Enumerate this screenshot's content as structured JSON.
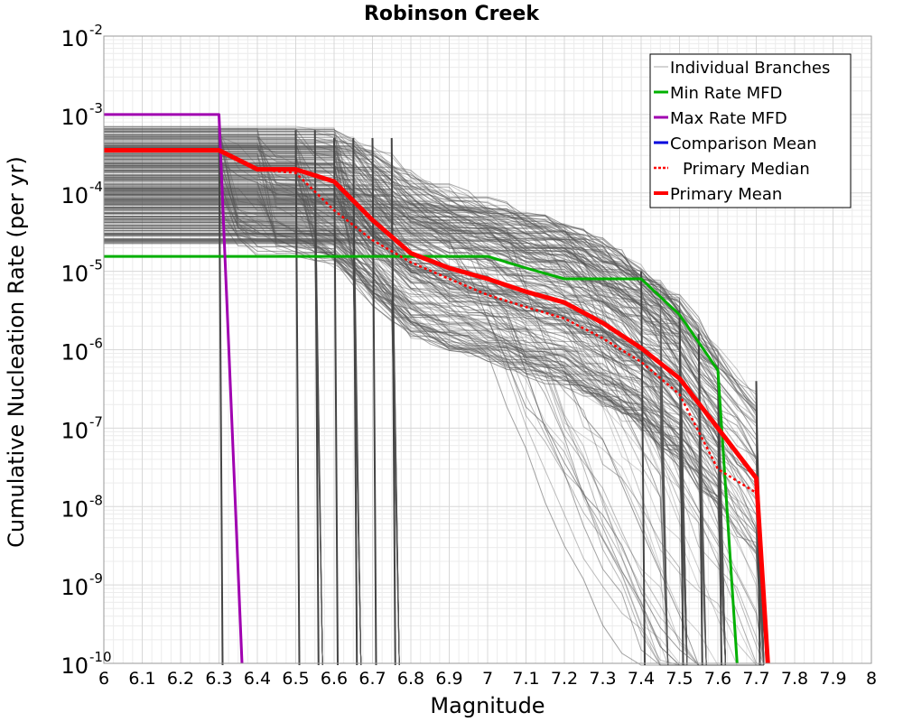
{
  "chart_data": {
    "type": "line",
    "title": "Robinson Creek",
    "xlabel": "Magnitude",
    "ylabel": "Cumulative Nucleation Rate (per yr)",
    "xlim": [
      6,
      8
    ],
    "ylim": [
      1e-10,
      0.01
    ],
    "yscale": "log",
    "grid": true,
    "legend_position": "top-right",
    "x_ticks": [
      "6",
      "6.1",
      "6.2",
      "6.3",
      "6.4",
      "6.5",
      "6.6",
      "6.7",
      "6.8",
      "6.9",
      "7",
      "7.1",
      "7.2",
      "7.3",
      "7.4",
      "7.5",
      "7.6",
      "7.7",
      "7.8",
      "7.9",
      "8"
    ],
    "y_ticks": [
      {
        "base": "10",
        "exp": "-2"
      },
      {
        "base": "10",
        "exp": "-3"
      },
      {
        "base": "10",
        "exp": "-4"
      },
      {
        "base": "10",
        "exp": "-5"
      },
      {
        "base": "10",
        "exp": "-6"
      },
      {
        "base": "10",
        "exp": "-7"
      },
      {
        "base": "10",
        "exp": "-8"
      },
      {
        "base": "10",
        "exp": "-9"
      },
      {
        "base": "10",
        "exp": "-10"
      }
    ],
    "series": [
      {
        "name": "Individual Branches",
        "color": "#555555",
        "style": "thin",
        "note": "thousands of logic-tree branch MFDs (rendered procedurally)"
      },
      {
        "name": "Min Rate MFD",
        "color": "#00b000",
        "style": "solid",
        "x": [
          6.0,
          6.3,
          6.5,
          6.6,
          6.7,
          6.8,
          6.9,
          7.0,
          7.1,
          7.2,
          7.3,
          7.4,
          7.5,
          7.6,
          7.65
        ],
        "y": [
          1.55e-05,
          1.55e-05,
          1.55e-05,
          1.55e-05,
          1.55e-05,
          1.55e-05,
          1.55e-05,
          1.55e-05,
          1.1e-05,
          8e-06,
          8e-06,
          8e-06,
          2.8e-06,
          5.5e-07,
          1e-10
        ]
      },
      {
        "name": "Max Rate MFD",
        "color": "#a000b0",
        "style": "solid",
        "x": [
          6.0,
          6.3,
          6.36
        ],
        "y": [
          0.001,
          0.001,
          1e-10
        ]
      },
      {
        "name": "Comparison Mean",
        "color": "#0000dd",
        "style": "solid",
        "x": [],
        "y": []
      },
      {
        "name": "Primary Median",
        "color": "#ff0000",
        "style": "dotted",
        "x": [
          6.0,
          6.3,
          6.4,
          6.5,
          6.6,
          6.7,
          6.8,
          6.9,
          7.0,
          7.1,
          7.2,
          7.3,
          7.4,
          7.5,
          7.6,
          7.7,
          7.73
        ],
        "y": [
          0.00035,
          0.00035,
          0.0002,
          0.00018,
          6e-05,
          2.5e-05,
          1.3e-05,
          8e-06,
          5e-06,
          3.5e-06,
          2.5e-06,
          1.4e-06,
          7e-07,
          2.7e-07,
          3e-08,
          1.5e-08,
          1e-10
        ]
      },
      {
        "name": "Primary Mean",
        "color": "#ff0000",
        "style": "thick",
        "x": [
          6.0,
          6.3,
          6.4,
          6.5,
          6.6,
          6.7,
          6.8,
          6.9,
          7.0,
          7.1,
          7.2,
          7.3,
          7.4,
          7.5,
          7.6,
          7.7,
          7.73
        ],
        "y": [
          0.00035,
          0.00035,
          0.0002,
          0.0002,
          0.00014,
          4.5e-05,
          1.7e-05,
          1.1e-05,
          8e-06,
          5.5e-06,
          4e-06,
          2.2e-06,
          1.05e-06,
          4.3e-07,
          1e-07,
          2.3e-08,
          1e-10
        ]
      }
    ],
    "branch_style": {
      "color": "#555555"
    }
  }
}
